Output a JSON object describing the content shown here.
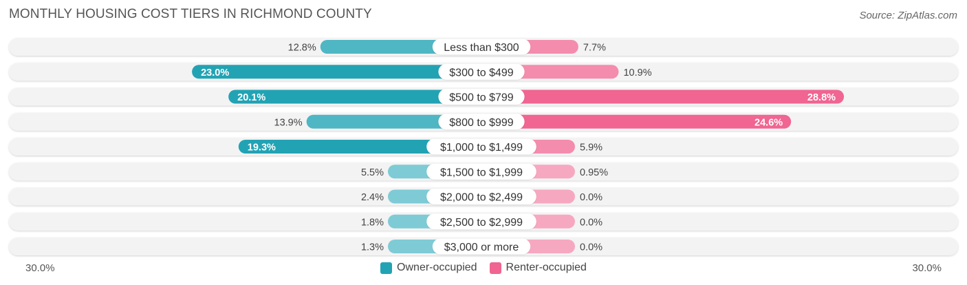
{
  "chart_data": {
    "type": "bar",
    "orientation": "horizontal-diverging",
    "title": "MONTHLY HOUSING COST TIERS IN RICHMOND COUNTY",
    "source": "Source: ZipAtlas.com",
    "categories": [
      "Less than $300",
      "$300 to $499",
      "$500 to $799",
      "$800 to $999",
      "$1,000 to $1,499",
      "$1,500 to $1,999",
      "$2,000 to $2,499",
      "$2,500 to $2,999",
      "$3,000 or more"
    ],
    "series": [
      {
        "name": "Owner-occupied",
        "values": [
          12.8,
          23.0,
          20.1,
          13.9,
          19.3,
          5.5,
          2.4,
          1.8,
          1.3
        ],
        "labels": [
          "12.8%",
          "23.0%",
          "20.1%",
          "13.9%",
          "19.3%",
          "5.5%",
          "2.4%",
          "1.8%",
          "1.3%"
        ]
      },
      {
        "name": "Renter-occupied",
        "values": [
          7.7,
          10.9,
          28.8,
          24.6,
          5.9,
          0.95,
          0.0,
          0.0,
          0.0
        ],
        "labels": [
          "7.7%",
          "10.9%",
          "28.8%",
          "24.6%",
          "5.9%",
          "0.95%",
          "0.0%",
          "0.0%",
          "0.0%"
        ]
      }
    ],
    "axis_min_label": "30.0%",
    "axis_max_label": "30.0%",
    "xlim": [
      -30,
      30
    ],
    "legend_position": "bottom-center",
    "colors": {
      "owner_strong": "#22a3b4",
      "owner_light": "#7ecbd5",
      "renter_strong": "#f06592",
      "renter_light": "#f7a8c1"
    }
  }
}
